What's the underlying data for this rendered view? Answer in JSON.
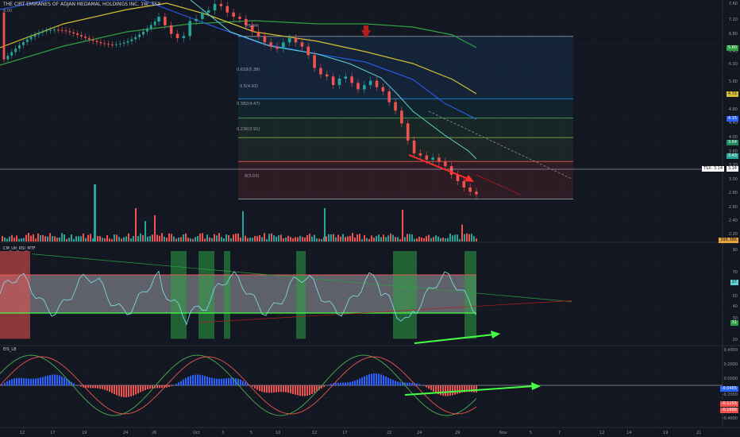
{
  "header": {
    "title": "THE CIRT EMIRANES OF ADJAN MEDAMAL HOLDINGS INC, 1W, TSX",
    "sub": "0.00"
  },
  "panes": {
    "rsi_label": "CM_Ult_RSI_MTF",
    "macd_label": "EIS_LB"
  },
  "price_axis": {
    "labels": [
      "7.60",
      "7.20",
      "6.80",
      "6.40",
      "6.00",
      "5.60",
      "5.20",
      "4.80",
      "4.40",
      "4.00",
      "3.60",
      "3.20",
      "3.00",
      "2.80",
      "2.60",
      "2.40",
      "2.20"
    ],
    "current": "3.14",
    "cross_label": "TSX: 3.14"
  },
  "volume_axis": {
    "label": "396.38K"
  },
  "rsi_axis": {
    "labels": [
      "90",
      "70",
      "50",
      "40",
      "30",
      "20"
    ],
    "badge_teal": "37",
    "badge_green": "31"
  },
  "macd_axis": {
    "labels": [
      "0.4000",
      "0.2000",
      "0.0000",
      "-0.2000",
      "-0.4000"
    ],
    "badge_blue": "-0.0465",
    "badge_red1": "-0.1155",
    "badge_red2": "-0.1688"
  },
  "badges": {
    "green_top": "5.60",
    "yellow": "4.72",
    "blue": "4.15",
    "green_mid": "3.64",
    "green_low": "3.43"
  },
  "fib_labels": [
    "1(6.84)",
    "0.618(5.38)",
    "0.5(4.93)",
    "0.382(4.47)",
    "0.236(3.91)",
    "0(3.03)"
  ],
  "x_axis": {
    "labels": [
      "12",
      "17",
      "19",
      "24",
      "26",
      "Oct",
      "3",
      "5",
      "10",
      "12",
      "17",
      "22",
      "24",
      "29",
      "Nov",
      "5",
      "7",
      "12",
      "14",
      "19",
      "21"
    ]
  },
  "colors": {
    "background": "#131722",
    "up": "#26a69a",
    "down": "#ef5350",
    "ma_yellow": "#d4c033",
    "ma_green": "#2ea043",
    "ma_blue": "#2962ff",
    "ma_cyan": "#5fd3d3",
    "arrow_red": "#ff2a2a",
    "arrow_green": "#44ff44"
  },
  "chart_data": {
    "type": "candlestick",
    "symbol_header": "THE CIRT EMIRANES OF ADJAN MEDAMAL HOLDINGS INC, 1W, TSX",
    "y_range": [
      2.2,
      7.6
    ],
    "current_price": 3.14,
    "close_path": [
      7.3,
      7.1,
      6.9,
      6.8,
      6.85,
      7.2,
      7.25,
      7.4,
      7.45,
      7.6,
      7.55,
      7.4,
      7.3,
      7.25,
      7.1,
      6.95,
      6.85,
      6.7,
      6.6,
      6.55,
      6.7,
      6.8,
      6.7,
      6.6,
      6.4,
      6.1,
      5.95,
      5.9,
      5.7,
      5.85,
      5.9,
      5.75,
      5.6,
      5.7,
      5.8,
      5.65,
      5.55,
      5.3,
      5.1,
      4.8,
      4.4,
      4.1,
      4.05,
      3.95,
      4.0,
      3.9,
      3.8,
      3.6,
      3.45,
      3.3,
      3.2,
      3.14
    ],
    "fibonacci": [
      {
        "level": 1,
        "price": 6.84
      },
      {
        "level": 0.618,
        "price": 5.38
      },
      {
        "level": 0.5,
        "price": 4.93
      },
      {
        "level": 0.382,
        "price": 4.47
      },
      {
        "level": 0.236,
        "price": 3.91
      },
      {
        "level": 0,
        "price": 3.03
      }
    ],
    "rsi_bands": {
      "upper": 70,
      "lower": 30
    },
    "x_tick_labels": [
      "12",
      "17",
      "19",
      "24",
      "26",
      "Oct",
      "3",
      "5",
      "10",
      "12",
      "17",
      "22",
      "24",
      "29",
      "Nov",
      "5",
      "7",
      "12",
      "14",
      "19",
      "21"
    ]
  }
}
